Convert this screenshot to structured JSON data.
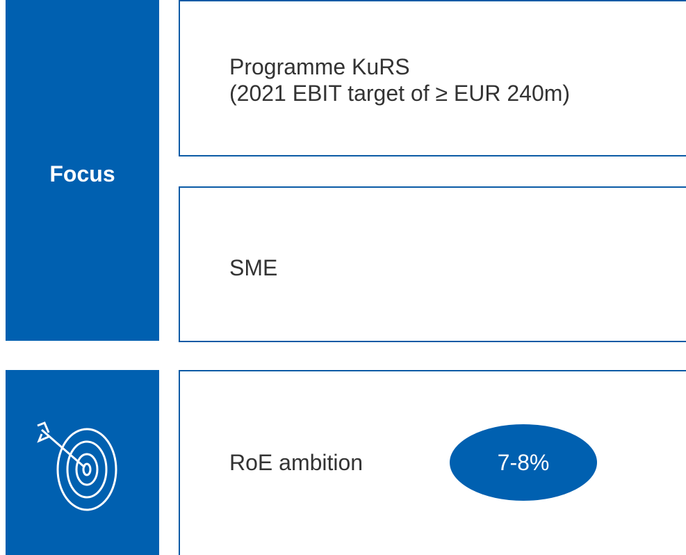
{
  "focus": {
    "label": "Focus",
    "items": [
      "Programme KuRS",
      "(2021 EBIT target of ≥ EUR 240m)",
      "SME"
    ]
  },
  "ambition": {
    "label": "RoE ambition",
    "value": "7-8%"
  }
}
